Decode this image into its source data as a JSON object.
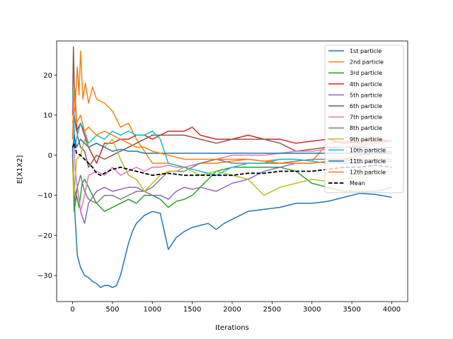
{
  "chart_data": {
    "type": "line",
    "title": "",
    "xlabel": "Iterations",
    "ylabel": "E[X1X2]",
    "xlim": [
      -200,
      4200
    ],
    "ylim": [
      -36.5,
      28.5
    ],
    "xticks": [
      0,
      500,
      1000,
      1500,
      2000,
      2500,
      3000,
      3500,
      4000
    ],
    "yticks": [
      -30,
      -20,
      -10,
      0,
      10,
      20
    ],
    "xtick_labels": [
      "0",
      "500",
      "1000",
      "1500",
      "2000",
      "2500",
      "3000",
      "3500",
      "4000"
    ],
    "ytick_labels": [
      "−30",
      "−20",
      "−10",
      "0",
      "10",
      "20"
    ],
    "grid": false,
    "legend_position": "top-right",
    "series": [
      {
        "name": "1st particle",
        "color": "#1f77b4",
        "dash": false,
        "x": [
          0,
          10,
          30,
          60,
          100,
          150,
          200,
          250,
          300,
          350,
          400,
          450,
          500,
          550,
          600,
          650,
          700,
          750,
          800,
          900,
          1000,
          1100,
          1200,
          1300,
          1400,
          1500,
          1600,
          1700,
          1800,
          1900,
          2000,
          2200,
          2400,
          2600,
          2800,
          3000,
          3200,
          3400,
          3600,
          3800,
          4000
        ],
        "y": [
          2,
          -5,
          -15,
          -25,
          -28,
          -30,
          -30.5,
          -31.5,
          -32,
          -33,
          -32.5,
          -32.5,
          -33,
          -32.5,
          -30,
          -26,
          -22,
          -19,
          -17,
          -15,
          -14,
          -14.5,
          -23.5,
          -20.5,
          -19,
          -18,
          -17.5,
          -17,
          -18.5,
          -17,
          -16,
          -14,
          -13.5,
          -13,
          -12,
          -12,
          -11.5,
          -10.5,
          -9.5,
          -9.8,
          -10.5
        ]
      },
      {
        "name": "2nd particle",
        "color": "#ff7f0e",
        "dash": false,
        "x": [
          0,
          30,
          60,
          80,
          100,
          130,
          160,
          200,
          250,
          300,
          400,
          500,
          600,
          700,
          800,
          900,
          1000,
          1200,
          1400,
          1600,
          1800,
          2000,
          2200,
          2400,
          2600,
          2800,
          3000,
          3200,
          3400,
          3600,
          3800,
          4000
        ],
        "y": [
          8,
          12,
          22,
          15,
          26,
          14,
          18,
          13,
          17,
          14,
          13,
          11,
          7,
          8,
          4,
          1,
          -2,
          -2,
          -3,
          -2,
          -2,
          -1.5,
          -1,
          -1.5,
          -1,
          -1,
          -1.5,
          3,
          3.5,
          3,
          3.5,
          3.5
        ]
      },
      {
        "name": "3rd particle",
        "color": "#2ca02c",
        "dash": false,
        "x": [
          0,
          20,
          50,
          80,
          120,
          150,
          200,
          300,
          400,
          500,
          600,
          700,
          800,
          900,
          1000,
          1100,
          1200,
          1300,
          1400,
          1500,
          1600,
          1800,
          2000,
          2200,
          2400,
          2600,
          2800,
          3000,
          3200,
          3400,
          3600,
          3800,
          4000
        ],
        "y": [
          0,
          -14,
          -10,
          -13,
          -7,
          -6,
          -8,
          -12,
          -14,
          -13,
          -12,
          -11,
          -12,
          -10,
          -10,
          -11,
          -13,
          -11.5,
          -11,
          -10,
          -8,
          -4,
          -3,
          -3,
          -3,
          -3,
          -4,
          -7,
          -8,
          -9,
          -9,
          -9,
          -8
        ]
      },
      {
        "name": "4th particle",
        "color": "#d62728",
        "dash": false,
        "x": [
          0,
          20,
          50,
          100,
          200,
          300,
          400,
          500,
          600,
          700,
          800,
          900,
          1000,
          1100,
          1200,
          1300,
          1400,
          1500,
          1600,
          1800,
          2000,
          2200,
          2400,
          2600,
          2800,
          3000,
          3200,
          3400,
          3600,
          3800,
          4000
        ],
        "y": [
          5,
          10,
          6,
          8,
          2,
          -2,
          3,
          3,
          4,
          4,
          5,
          5,
          4,
          5,
          6,
          6,
          6,
          7,
          5,
          4,
          4,
          5,
          4,
          4,
          3,
          3.5,
          4,
          3,
          3.5,
          4,
          3.5
        ]
      },
      {
        "name": "5th particle",
        "color": "#9467bd",
        "dash": false,
        "x": [
          0,
          30,
          60,
          100,
          150,
          200,
          300,
          400,
          500,
          600,
          700,
          800,
          900,
          1000,
          1100,
          1200,
          1300,
          1400,
          1500,
          1600,
          1800,
          2000,
          2200,
          2400,
          2600,
          2800,
          3000,
          3200,
          3400,
          3600,
          3800,
          4000
        ],
        "y": [
          -3,
          -10,
          -8,
          -14,
          -17,
          -12,
          -9,
          -8,
          -9,
          -8.5,
          -8,
          -8,
          -9,
          -10,
          -10,
          -11,
          -9,
          -8,
          -8.5,
          -8,
          -9,
          -7,
          -6,
          -4,
          -3,
          -2,
          -2,
          -1.5,
          -2,
          -2,
          -1.5,
          -1.5
        ]
      },
      {
        "name": "6th particle",
        "color": "#8c564b",
        "dash": false,
        "x": [
          0,
          10,
          20,
          40,
          60,
          100,
          150,
          200,
          300,
          400,
          500,
          600,
          700,
          800,
          900,
          1000,
          1200,
          1400,
          1600,
          1800,
          2000,
          2200,
          2400,
          2600,
          2800,
          3000,
          3200,
          3400,
          3600,
          3800,
          4000
        ],
        "y": [
          10,
          27,
          18,
          12,
          5,
          2,
          1,
          -3,
          0,
          -1,
          0,
          1,
          2,
          3,
          4,
          5,
          5,
          5,
          4,
          3,
          4,
          4,
          4,
          3,
          1,
          1.5,
          2,
          2,
          2,
          1.5,
          2
        ]
      },
      {
        "name": "7th particle",
        "color": "#e377c2",
        "dash": false,
        "x": [
          0,
          30,
          60,
          100,
          150,
          200,
          300,
          400,
          500,
          600,
          700,
          800,
          900,
          1000,
          1100,
          1200,
          1300,
          1400,
          1600,
          1800,
          2000,
          2200,
          2400,
          2600,
          2800,
          3000,
          3200,
          3400,
          3600,
          3800,
          4000
        ],
        "y": [
          15,
          -3,
          -8,
          -14,
          -10,
          -5,
          -4,
          -5,
          -3,
          -5,
          -4,
          -3,
          -4,
          -3,
          -3,
          -2.5,
          -3,
          -3,
          -2,
          -1,
          0,
          0,
          0,
          0.5,
          1,
          1,
          1.5,
          2,
          2.5,
          3,
          3.5
        ]
      },
      {
        "name": "8th particle",
        "color": "#7f7f7f",
        "dash": false,
        "x": [
          0,
          30,
          60,
          100,
          150,
          200,
          300,
          400,
          500,
          600,
          700,
          800,
          900,
          1000,
          1100,
          1200,
          1400,
          1600,
          1800,
          2000,
          2200,
          2400,
          2600,
          2800,
          3000,
          3200,
          3400,
          3600,
          3800,
          4000
        ],
        "y": [
          0,
          -12,
          -8,
          -5,
          -9,
          -11,
          -12,
          -10,
          -10,
          -11,
          -10,
          -9,
          -9,
          -8,
          -6,
          -4,
          -4,
          -2,
          -1,
          -2,
          -2,
          -2,
          -2,
          -1.5,
          -1,
          -1,
          -1,
          0,
          0.5,
          1
        ]
      },
      {
        "name": "9th particle",
        "color": "#bcbd22",
        "dash": false,
        "x": [
          0,
          20,
          50,
          100,
          150,
          200,
          300,
          400,
          500,
          600,
          700,
          800,
          900,
          1000,
          1100,
          1200,
          1300,
          1400,
          1500,
          1600,
          1800,
          2000,
          2200,
          2400,
          2600,
          2800,
          3000,
          3200,
          3400,
          3600,
          3800,
          4000
        ],
        "y": [
          -3,
          -10,
          -1,
          0,
          4,
          2,
          3,
          2,
          4,
          -1,
          -5,
          -6,
          -9,
          -7,
          -5,
          -4,
          -4,
          -3,
          -4,
          -5,
          -4,
          -5,
          -6,
          -10,
          -8,
          -7,
          -6,
          -6.5,
          -6,
          -5,
          -4.5,
          -4
        ]
      },
      {
        "name": "10th particle",
        "color": "#17becf",
        "dash": false,
        "x": [
          0,
          10,
          30,
          60,
          100,
          150,
          200,
          300,
          400,
          500,
          600,
          700,
          800,
          900,
          1000,
          1100,
          1200,
          1400,
          1600,
          1800,
          2000,
          2200,
          2400,
          2600,
          2800,
          3000,
          3200,
          3400,
          3600,
          3800,
          4000
        ],
        "y": [
          16,
          13,
          2,
          5,
          8,
          6,
          3,
          5,
          4,
          6,
          5,
          6,
          5,
          5,
          6,
          4,
          -2,
          -3,
          -4,
          -5,
          -3,
          -2,
          -2,
          -1,
          -1,
          -1.5,
          -2,
          -1.5,
          -1,
          -1,
          -1
        ]
      },
      {
        "name": "11th particle",
        "color": "#1f77b4",
        "dash": false,
        "x": [
          0,
          20,
          50,
          100,
          200,
          300,
          400,
          500,
          600,
          700,
          800,
          900,
          1000,
          1200,
          1400,
          1600,
          1800,
          2000,
          2200,
          2400,
          2600,
          2800,
          3000,
          3200,
          3400,
          3600,
          3800,
          4000
        ],
        "y": [
          1,
          5,
          2,
          4,
          2,
          3,
          2,
          1,
          1.5,
          1,
          1,
          0.5,
          0.5,
          0.5,
          0.5,
          0.5,
          0.5,
          0.5,
          0.5,
          0.5,
          0.5,
          0.5,
          0.5,
          0.5,
          0.5,
          0.5,
          0.5,
          0.5
        ]
      },
      {
        "name": "12th particle",
        "color": "#ff7f0e",
        "dash": false,
        "x": [
          0,
          20,
          50,
          100,
          150,
          200,
          300,
          400,
          500,
          600,
          700,
          800,
          900,
          1000,
          1200,
          1400,
          1600,
          1800,
          2000,
          2200,
          2400,
          2600,
          2800,
          3000,
          3200,
          3400,
          3600,
          3800,
          4000
        ],
        "y": [
          4,
          16,
          8,
          10,
          6,
          7,
          5,
          6,
          5,
          4,
          3,
          2,
          2,
          1,
          0,
          -1,
          -1,
          -1,
          -1,
          -1,
          -1.5,
          -2,
          -2,
          -2,
          -1.5,
          -1,
          -1,
          -1,
          -1
        ]
      },
      {
        "name": "Mean",
        "color": "#000000",
        "dash": true,
        "x": [
          0,
          20,
          50,
          100,
          150,
          200,
          250,
          300,
          350,
          400,
          500,
          600,
          700,
          800,
          900,
          1000,
          1200,
          1400,
          1600,
          1800,
          2000,
          2200,
          2400,
          2600,
          2800,
          3000,
          3200,
          3400,
          3600,
          3800,
          4000
        ],
        "y": [
          2,
          3,
          0.5,
          0,
          -1,
          -2,
          -3,
          -4.5,
          -5,
          -4.5,
          -3.5,
          -3,
          -3.5,
          -4,
          -4.5,
          -5,
          -4.5,
          -5,
          -5,
          -5,
          -5,
          -4.5,
          -4.5,
          -4,
          -4,
          -4,
          -3.5,
          -3,
          -3,
          -2.5,
          -3
        ]
      }
    ]
  }
}
